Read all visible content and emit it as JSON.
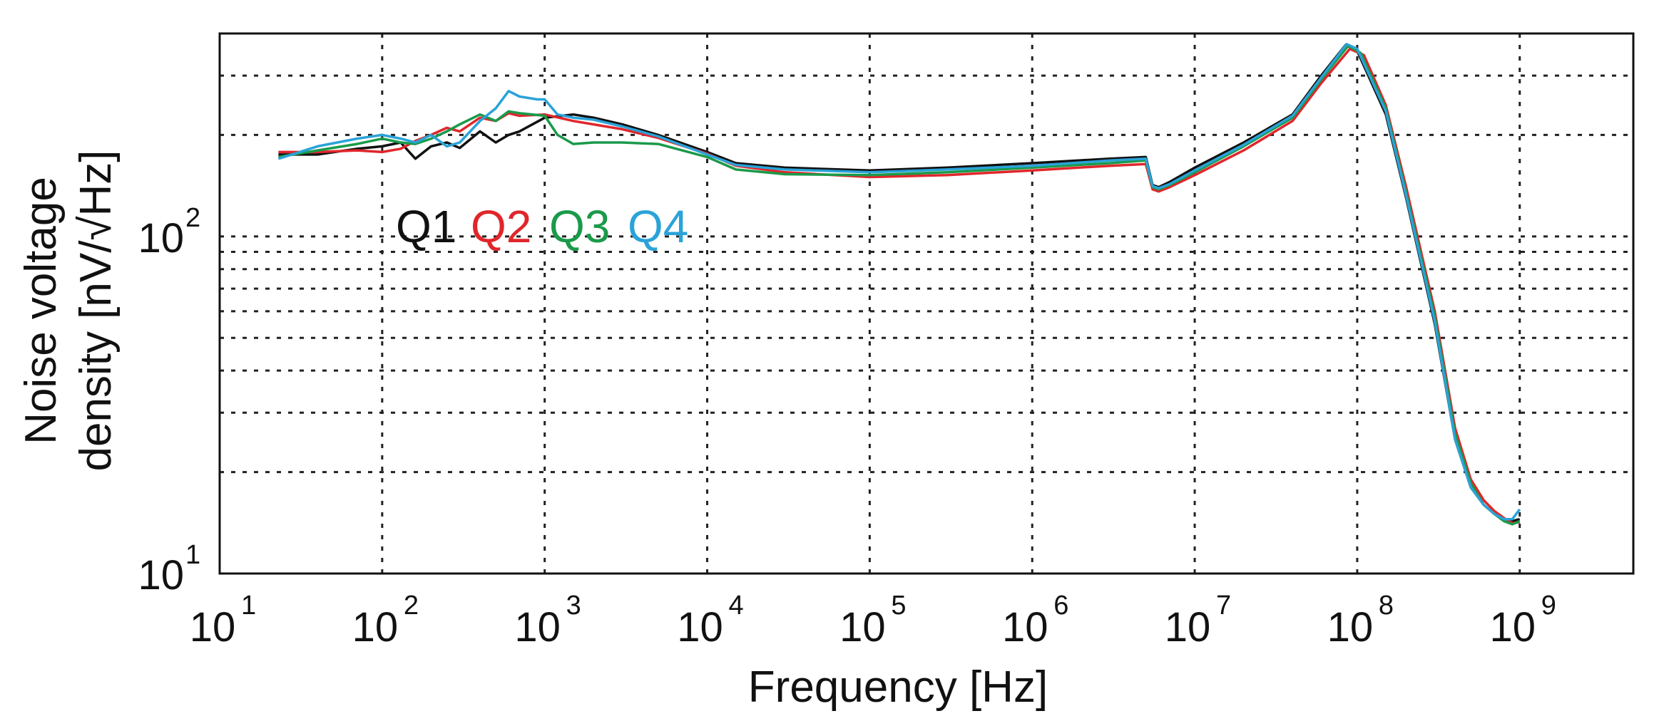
{
  "chart_data": {
    "type": "line",
    "title": "",
    "xlabel": "Frequency [Hz]",
    "ylabel_line1": "Noise voltage",
    "ylabel_line2": "density [nV/√Hz]",
    "xscale": "log",
    "yscale": "log",
    "xlim": [
      10,
      5000000000
    ],
    "ylim": [
      10,
      400
    ],
    "grid": true,
    "x_ticks": [
      {
        "base": "10",
        "exp": "1",
        "value": 10
      },
      {
        "base": "10",
        "exp": "2",
        "value": 100
      },
      {
        "base": "10",
        "exp": "3",
        "value": 1000
      },
      {
        "base": "10",
        "exp": "4",
        "value": 10000
      },
      {
        "base": "10",
        "exp": "5",
        "value": 100000
      },
      {
        "base": "10",
        "exp": "6",
        "value": 1000000
      },
      {
        "base": "10",
        "exp": "7",
        "value": 10000000
      },
      {
        "base": "10",
        "exp": "8",
        "value": 100000000
      },
      {
        "base": "10",
        "exp": "9",
        "value": 1000000000
      }
    ],
    "y_ticks": [
      {
        "base": "10",
        "exp": "1",
        "value": 10
      },
      {
        "base": "10",
        "exp": "2",
        "value": 100
      }
    ],
    "y_minor_grid": [
      20,
      30,
      40,
      50,
      60,
      70,
      80,
      90,
      200,
      300
    ],
    "legend": {
      "placement": "upper-left-inside",
      "entries": [
        {
          "label": "Q1",
          "color": "#111111"
        },
        {
          "label": "Q2",
          "color": "#e0262b"
        },
        {
          "label": "Q3",
          "color": "#1a9a4a"
        },
        {
          "label": "Q4",
          "color": "#2aa3d8"
        }
      ]
    },
    "series": [
      {
        "name": "Q1",
        "color": "#111111",
        "x": [
          23,
          40,
          70,
          100,
          130,
          160,
          200,
          250,
          300,
          400,
          500,
          600,
          700,
          1000,
          1500,
          2000,
          3000,
          5000,
          10000,
          15000,
          30000,
          100000,
          300000,
          1000000,
          3000000,
          5000000,
          5500000,
          6000000,
          7000000,
          10000000,
          20000000,
          40000000,
          60000000,
          85000000,
          100000000,
          150000000,
          200000000,
          300000000,
          400000000,
          500000000,
          600000000,
          700000000,
          800000000,
          900000000,
          1000000000
        ],
        "y": [
          175,
          175,
          182,
          185,
          190,
          170,
          185,
          190,
          183,
          205,
          190,
          200,
          205,
          225,
          230,
          225,
          215,
          200,
          178,
          165,
          160,
          157,
          160,
          165,
          170,
          172,
          142,
          140,
          145,
          160,
          190,
          230,
          300,
          370,
          355,
          230,
          130,
          55,
          25,
          18,
          16,
          15,
          14.5,
          14.3,
          14.5
        ]
      },
      {
        "name": "Q2",
        "color": "#e0262b",
        "x": [
          23,
          40,
          70,
          100,
          130,
          160,
          200,
          250,
          300,
          400,
          500,
          600,
          700,
          1000,
          1500,
          2000,
          3000,
          5000,
          10000,
          15000,
          30000,
          100000,
          300000,
          1000000,
          3000000,
          5000000,
          5500000,
          6000000,
          7000000,
          10000000,
          20000000,
          40000000,
          60000000,
          90000000,
          110000000,
          150000000,
          200000000,
          300000000,
          400000000,
          500000000,
          600000000,
          700000000,
          800000000,
          900000000,
          1000000000
        ],
        "y": [
          178,
          178,
          180,
          178,
          182,
          192,
          200,
          210,
          205,
          225,
          220,
          232,
          228,
          230,
          220,
          215,
          208,
          196,
          176,
          162,
          155,
          150,
          152,
          157,
          162,
          164,
          138,
          136,
          140,
          152,
          180,
          220,
          285,
          360,
          345,
          245,
          140,
          60,
          27,
          19,
          16.5,
          15.3,
          14.6,
          14.1,
          14.2
        ]
      },
      {
        "name": "Q3",
        "color": "#1a9a4a",
        "x": [
          23,
          40,
          70,
          100,
          130,
          160,
          200,
          250,
          300,
          400,
          500,
          600,
          700,
          1000,
          1200,
          1500,
          2000,
          3000,
          5000,
          10000,
          15000,
          30000,
          100000,
          300000,
          1000000,
          3000000,
          5000000,
          5500000,
          6000000,
          7000000,
          10000000,
          20000000,
          40000000,
          60000000,
          88000000,
          105000000,
          150000000,
          200000000,
          300000000,
          400000000,
          500000000,
          600000000,
          700000000,
          800000000,
          900000000,
          1000000000
        ],
        "y": [
          172,
          180,
          188,
          195,
          190,
          188,
          195,
          205,
          215,
          230,
          220,
          235,
          232,
          228,
          200,
          188,
          190,
          190,
          188,
          172,
          158,
          153,
          152,
          155,
          160,
          165,
          168,
          140,
          138,
          142,
          155,
          185,
          225,
          292,
          368,
          350,
          240,
          135,
          58,
          26,
          18.5,
          16,
          15,
          14.3,
          14,
          14.3
        ]
      },
      {
        "name": "Q4",
        "color": "#2aa3d8",
        "x": [
          23,
          40,
          70,
          100,
          130,
          160,
          200,
          250,
          300,
          400,
          500,
          600,
          700,
          900,
          1000,
          1200,
          1500,
          2000,
          3000,
          5000,
          10000,
          15000,
          30000,
          100000,
          300000,
          1000000,
          3000000,
          5000000,
          5500000,
          6000000,
          7000000,
          10000000,
          20000000,
          40000000,
          60000000,
          86000000,
          100000000,
          150000000,
          200000000,
          300000000,
          400000000,
          500000000,
          600000000,
          700000000,
          800000000,
          900000000,
          1000000000
        ],
        "y": [
          170,
          185,
          195,
          200,
          195,
          190,
          200,
          185,
          190,
          220,
          240,
          270,
          260,
          255,
          255,
          230,
          225,
          222,
          212,
          198,
          175,
          163,
          158,
          155,
          158,
          162,
          168,
          170,
          141,
          139,
          143,
          157,
          187,
          228,
          296,
          372,
          360,
          235,
          132,
          56,
          25,
          18,
          16,
          15,
          14.5,
          14.5,
          15.5
        ]
      }
    ]
  }
}
